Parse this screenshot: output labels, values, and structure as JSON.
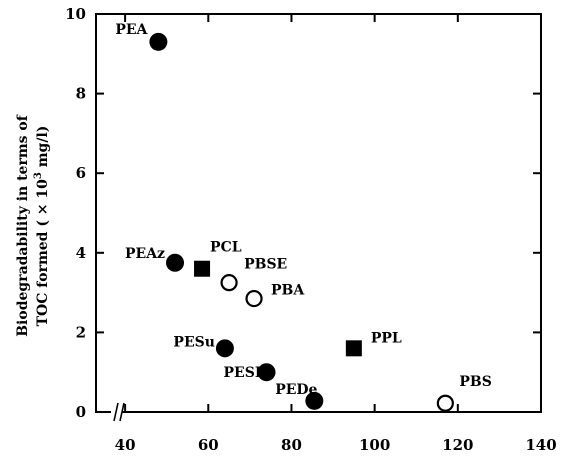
{
  "chart_data": {
    "type": "scatter",
    "title": "",
    "xlabel": "",
    "ylabel": "Biodegradability in terms of TOC formed ( × 10³ mg/l)",
    "ylabel_lines": [
      "Biodegradability in terms of",
      "TOC formed ( × 10",
      "3",
      " mg/l)"
    ],
    "xlim": [
      33,
      140
    ],
    "ylim": [
      0,
      10
    ],
    "x_ticks": [
      40,
      60,
      80,
      100,
      120,
      140
    ],
    "y_ticks": [
      0,
      2,
      4,
      6,
      8,
      10
    ],
    "x_axis_break": true,
    "grid": false,
    "points": [
      {
        "label": "PEA",
        "x": 48,
        "y": 9.3,
        "marker": "filled-circle"
      },
      {
        "label": "PEAz",
        "x": 52,
        "y": 3.75,
        "marker": "filled-circle"
      },
      {
        "label": "PCL",
        "x": 58.5,
        "y": 3.6,
        "marker": "filled-square"
      },
      {
        "label": "PBSE",
        "x": 65,
        "y": 3.25,
        "marker": "open-circle"
      },
      {
        "label": "PBA",
        "x": 71,
        "y": 2.85,
        "marker": "open-circle"
      },
      {
        "label": "PESu",
        "x": 64,
        "y": 1.6,
        "marker": "filled-circle"
      },
      {
        "label": "PESE",
        "x": 74,
        "y": 1.0,
        "marker": "filled-circle"
      },
      {
        "label": "PEDe",
        "x": 85.5,
        "y": 0.28,
        "marker": "filled-circle"
      },
      {
        "label": "PPL",
        "x": 95,
        "y": 1.6,
        "marker": "filled-square"
      },
      {
        "label": "PBS",
        "x": 117,
        "y": 0.22,
        "marker": "open-circle"
      }
    ]
  }
}
